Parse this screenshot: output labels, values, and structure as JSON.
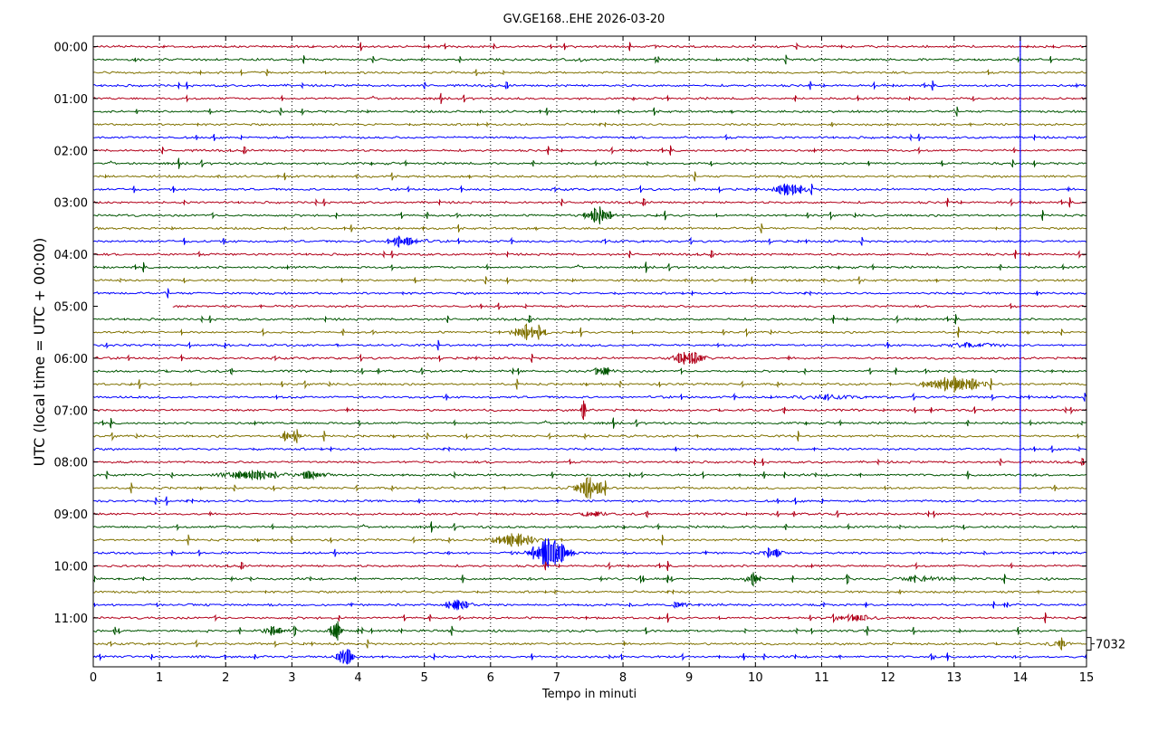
{
  "chart_data": {
    "type": "line",
    "title": "GV.GE168..EHE 2026-03-20",
    "xlabel": "Tempo in minuti",
    "ylabel": "UTC (local time = UTC + 00:00)",
    "xlim": [
      0,
      15
    ],
    "x_ticks": [
      "0",
      "1",
      "2",
      "3",
      "4",
      "5",
      "6",
      "7",
      "8",
      "9",
      "10",
      "11",
      "12",
      "13",
      "14",
      "15"
    ],
    "y_ticks": [
      "00:00",
      "01:00",
      "02:00",
      "03:00",
      "04:00",
      "05:00",
      "06:00",
      "07:00",
      "08:00",
      "09:00",
      "10:00",
      "11:00"
    ],
    "trace_interval_minutes": 15,
    "trace_count": 48,
    "trace_colors": [
      "#b2001a",
      "#005500",
      "#807200",
      "#0000ff"
    ],
    "grid": "vertical dotted",
    "scale_label": "7032",
    "events": [
      {
        "trace": 1,
        "minute": 7.3,
        "amp": 0.15,
        "dur": 0.2
      },
      {
        "trace": 11,
        "minute": 10.55,
        "amp": 0.55,
        "dur": 0.35
      },
      {
        "trace": 13,
        "minute": 7.65,
        "amp": 0.7,
        "dur": 0.3
      },
      {
        "trace": 15,
        "minute": 4.7,
        "amp": 0.55,
        "dur": 0.38
      },
      {
        "trace": 22,
        "minute": 6.6,
        "amp": 1.0,
        "dur": 0.28
      },
      {
        "trace": 23,
        "minute": 13.3,
        "amp": 0.2,
        "dur": 0.6
      },
      {
        "trace": 24,
        "minute": 9.0,
        "amp": 0.6,
        "dur": 0.35
      },
      {
        "trace": 25,
        "minute": 7.7,
        "amp": 0.45,
        "dur": 0.2
      },
      {
        "trace": 26,
        "minute": 13.0,
        "amp": 0.8,
        "dur": 0.55
      },
      {
        "trace": 27,
        "minute": 11.0,
        "amp": 0.15,
        "dur": 0.8
      },
      {
        "trace": 28,
        "minute": 7.4,
        "amp": 0.9,
        "dur": 0.05
      },
      {
        "trace": 30,
        "minute": 3.0,
        "amp": 1.0,
        "dur": 0.18
      },
      {
        "trace": 33,
        "minute": 2.4,
        "amp": 0.45,
        "dur": 0.55
      },
      {
        "trace": 33,
        "minute": 3.3,
        "amp": 0.5,
        "dur": 0.3
      },
      {
        "trace": 34,
        "minute": 7.5,
        "amp": 1.0,
        "dur": 0.3
      },
      {
        "trace": 36,
        "minute": 7.55,
        "amp": 0.35,
        "dur": 0.2
      },
      {
        "trace": 38,
        "minute": 6.35,
        "amp": 0.6,
        "dur": 0.4
      },
      {
        "trace": 39,
        "minute": 6.9,
        "amp": 1.3,
        "dur": 0.4
      },
      {
        "trace": 39,
        "minute": 10.25,
        "amp": 0.55,
        "dur": 0.2
      },
      {
        "trace": 41,
        "minute": 9.95,
        "amp": 0.9,
        "dur": 0.12
      },
      {
        "trace": 41,
        "minute": 12.5,
        "amp": 0.15,
        "dur": 0.6
      },
      {
        "trace": 43,
        "minute": 5.5,
        "amp": 0.65,
        "dur": 0.25
      },
      {
        "trace": 43,
        "minute": 8.85,
        "amp": 0.3,
        "dur": 0.15
      },
      {
        "trace": 44,
        "minute": 11.5,
        "amp": 0.25,
        "dur": 0.4
      },
      {
        "trace": 45,
        "minute": 2.75,
        "amp": 0.4,
        "dur": 0.25
      },
      {
        "trace": 45,
        "minute": 3.65,
        "amp": 1.3,
        "dur": 0.12
      },
      {
        "trace": 46,
        "minute": 14.6,
        "amp": 0.35,
        "dur": 0.2
      },
      {
        "trace": 47,
        "minute": 3.8,
        "amp": 1.3,
        "dur": 0.15
      },
      {
        "trace": 47,
        "minute": 12.7,
        "amp": 0.25,
        "dur": 0.1
      }
    ],
    "spike": {
      "minute": 14.0,
      "from_trace": 0,
      "to_trace": 34
    }
  }
}
